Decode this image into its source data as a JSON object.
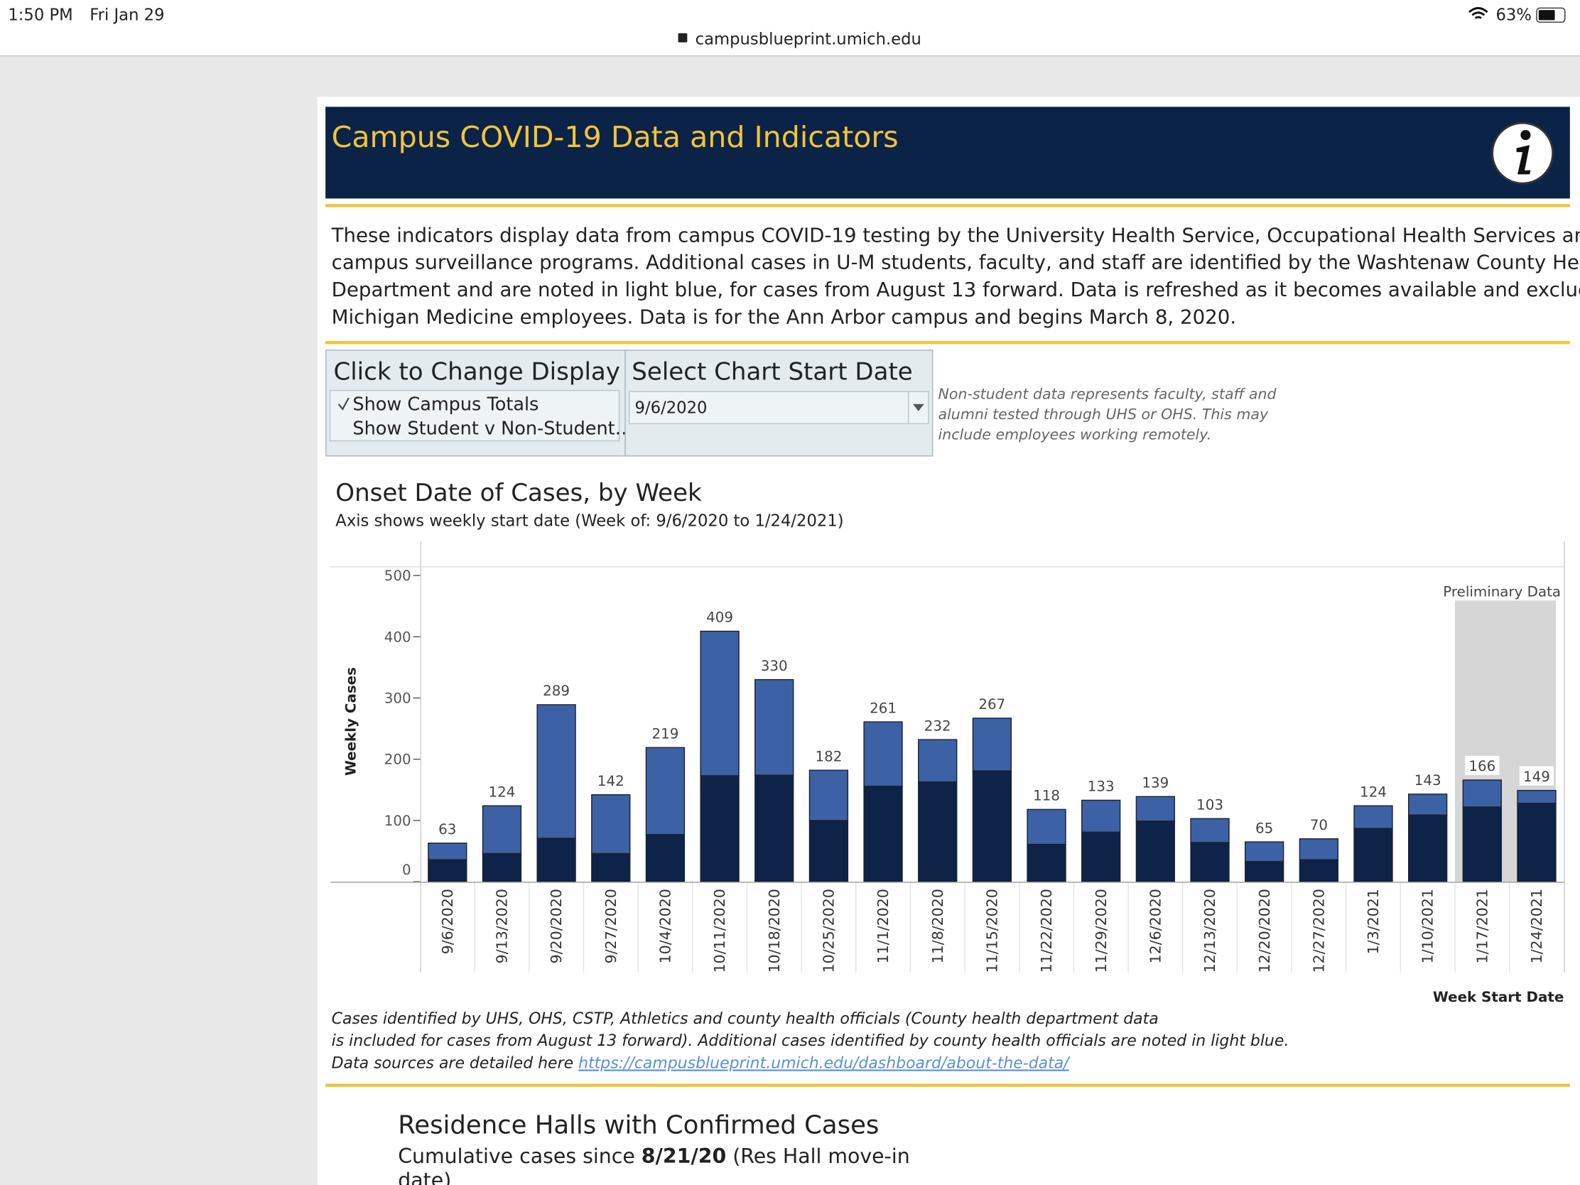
{
  "status_bar": {
    "time": "1:50 PM",
    "date": "Fri Jan 29",
    "battery": "63%",
    "url": "campusblueprint.umich.edu"
  },
  "header": {
    "title": "Campus COVID-19 Data and Indicators"
  },
  "description": [
    "These indicators display data from campus COVID-19 testing by the University Health Service, Occupational Health Services and",
    "campus surveillance programs. Additional cases in U-M students, faculty, and staff are identified by the Washtenaw County Health",
    "Department and are noted in light blue, for cases from August 13 forward. Data is refreshed as it becomes available and excludes",
    "Michigan Medicine employees. Data is for the Ann Arbor campus and begins March 8, 2020."
  ],
  "controls": {
    "display": {
      "title": "Click to Change Display",
      "options": [
        "Show Campus Totals",
        "Show Student v Non-Student…"
      ]
    },
    "start_date": {
      "title": "Select Chart Start Date",
      "value": "9/6/2020"
    }
  },
  "note": [
    "Non-student data represents faculty, staff and",
    "alumni tested through UHS or OHS.  This may",
    "include employees working remotely."
  ],
  "chart_data": {
    "type": "stacked_bar",
    "title": "Onset Date of Cases, by Week",
    "subtitle": "Axis shows weekly start date (Week of: 9/6/2020 to 1/24/2021)",
    "y_label": "Weekly Cases",
    "x_label": "Week Start Date",
    "annotation": "Preliminary Data",
    "categories": [
      "9/6/2020",
      "9/13/2020",
      "9/20/2020",
      "9/27/2020",
      "10/4/2020",
      "10/11/2020",
      "10/18/2020",
      "10/25/2020",
      "11/1/2020",
      "11/8/2020",
      "11/15/2020",
      "11/22/2020",
      "11/29/2020",
      "12/6/2020",
      "12/13/2020",
      "12/20/2020",
      "12/27/2020",
      "1/3/2021",
      "1/10/2021",
      "1/17/2021",
      "1/24/2021"
    ],
    "series": [
      {
        "color": "#0d2347",
        "values": [
          36,
          46,
          71,
          46,
          77,
          173,
          174,
          100,
          156,
          163,
          181,
          61,
          81,
          99,
          64,
          33,
          36,
          87,
          109,
          122,
          128
        ]
      },
      {
        "color": "#3c62a5",
        "values": [
          27,
          78,
          218,
          96,
          142,
          236,
          156,
          82,
          105,
          69,
          86,
          57,
          52,
          40,
          39,
          32,
          34,
          37,
          34,
          44,
          21
        ]
      }
    ],
    "totals": [
      63,
      124,
      289,
      142,
      219,
      409,
      330,
      182,
      261,
      232,
      267,
      118,
      133,
      139,
      103,
      65,
      70,
      124,
      143,
      166,
      149
    ],
    "ylim": [
      0,
      515
    ],
    "yticks": [
      0,
      100,
      200,
      300,
      400,
      500
    ]
  },
  "footer": {
    "lines": [
      "Cases identified by UHS, OHS, CSTP, Athletics and county health officials (County health department data",
      "is included for cases from August 13 forward).  Additional cases identified by county health officials are noted in light blue."
    ],
    "link_prefix": "Data sources are detailed here",
    "link": "https://campusblueprint.umich.edu/dashboard/about-the-data/"
  },
  "residence": {
    "title": "Residence Halls with Confirmed Cases",
    "subtitle_prefix": "Cumulative cases since",
    "subtitle_date": "8/21/20",
    "subtitle_suffix": "(Res Hall move-in",
    "subtitle_cont": "date)"
  }
}
